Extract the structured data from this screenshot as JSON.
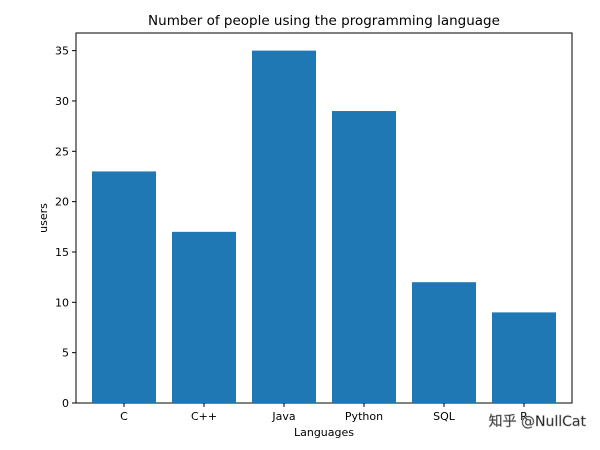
{
  "chart_data": {
    "type": "bar",
    "title": "Number of people using the programming language",
    "xlabel": "Languages",
    "ylabel": "users",
    "categories": [
      "C",
      "C++",
      "Java",
      "Python",
      "SQL",
      "R"
    ],
    "values": [
      23,
      17,
      35,
      29,
      12,
      9
    ],
    "ylim": [
      0,
      36.75
    ],
    "yticks": [
      0,
      5,
      10,
      15,
      20,
      25,
      30,
      35
    ],
    "bar_color": "#1f77b4",
    "grid": false,
    "legend": "none"
  },
  "watermark": {
    "text": "知乎 @NullCat",
    "color": "#ffffff"
  }
}
